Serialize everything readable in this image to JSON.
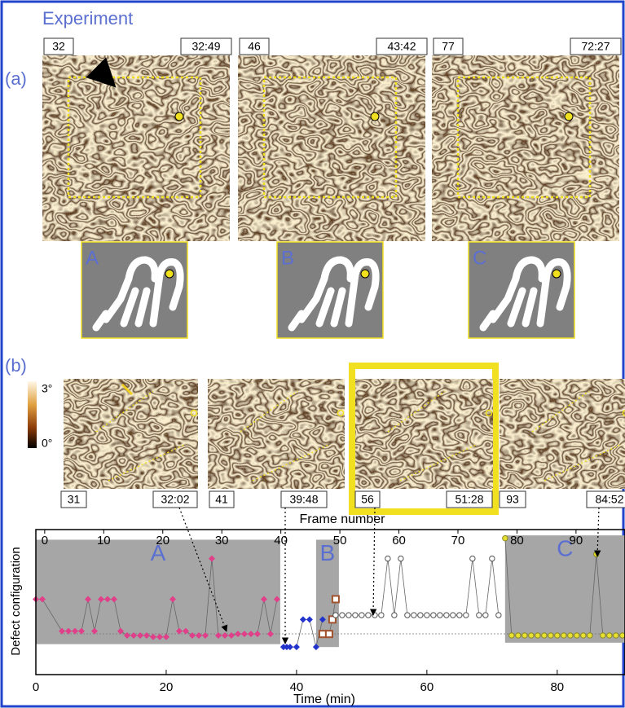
{
  "header": {
    "title": "Experiment"
  },
  "panel_a": {
    "label": "(a)",
    "frames": [
      {
        "number": "32",
        "time": "32:49",
        "schematic": "A"
      },
      {
        "number": "46",
        "time": "43:42",
        "schematic": "B"
      },
      {
        "number": "77",
        "time": "72:27",
        "schematic": "C"
      }
    ]
  },
  "panel_b": {
    "label": "(b)",
    "colorbar": {
      "max": "3°",
      "min": "0°"
    },
    "frames": [
      {
        "number": "31",
        "time": "32:02"
      },
      {
        "number": "41",
        "time": "39:48"
      },
      {
        "number": "56",
        "time": "51:28"
      },
      {
        "number": "93",
        "time": "84:52"
      }
    ]
  },
  "chart": {
    "x_label": "Time (min)",
    "x2_label": "Frame number",
    "y_label": "Defect configuration",
    "xlim": [
      0,
      90.4
    ],
    "xticks": [
      0,
      20,
      40,
      60,
      80
    ],
    "x2lim": [
      -1.5,
      98.3
    ],
    "x2ticks": [
      0,
      10,
      20,
      30,
      40,
      50,
      60,
      70,
      80,
      90
    ],
    "ylim": [
      0,
      10
    ],
    "regions": [
      {
        "label": "A",
        "x": [
          0,
          37.5
        ],
        "y": [
          2.1,
          9.3
        ]
      },
      {
        "label": "B",
        "x": [
          43,
          46.5
        ],
        "y": [
          1.9,
          9.3
        ]
      },
      {
        "label": "C",
        "x": [
          72,
          90.4
        ],
        "y": [
          2.2,
          9.6
        ]
      }
    ],
    "series": [
      {
        "color": "#e0408a",
        "marker": "diamond",
        "x": [
          0,
          1,
          4,
          5,
          6,
          7,
          8,
          9,
          10,
          11,
          12,
          13,
          14,
          15,
          16,
          17,
          18,
          19,
          20,
          21,
          22,
          23,
          24,
          25,
          26,
          27,
          28,
          29,
          30,
          31,
          32,
          33,
          34,
          35,
          36,
          37
        ],
        "y": [
          5.2,
          5.2,
          3.0,
          3.0,
          3.0,
          3.0,
          5.2,
          3.0,
          5.2,
          5.2,
          5.2,
          3.0,
          2.7,
          2.7,
          2.7,
          2.7,
          2.6,
          2.6,
          2.6,
          5.2,
          3.0,
          3.0,
          2.7,
          2.7,
          2.7,
          8.0,
          2.7,
          2.7,
          2.7,
          2.8,
          2.8,
          2.8,
          2.8,
          5.2,
          2.8,
          5.2
        ]
      },
      {
        "color": "#2233cc",
        "marker": "diamond",
        "x": [
          38,
          38.5,
          39,
          40,
          41,
          42,
          43,
          44
        ],
        "y": [
          1.9,
          1.9,
          1.9,
          1.9,
          3.8,
          3.8,
          1.9,
          3.8
        ]
      },
      {
        "color": "#a0522d",
        "marker": "square",
        "x": [
          44,
          45,
          45.5,
          46
        ],
        "y": [
          2.8,
          2.8,
          3.8,
          5.2
        ]
      },
      {
        "color": "#555555",
        "marker": "circle",
        "x": [
          46,
          47,
          48,
          49,
          50,
          51,
          52,
          53,
          54,
          55,
          56,
          57,
          58,
          59,
          60,
          61,
          62,
          63,
          64,
          65,
          66,
          67,
          68,
          69,
          70,
          71
        ],
        "y": [
          4.1,
          4.1,
          4.1,
          4.1,
          4.1,
          4.1,
          4.1,
          4.1,
          8.0,
          4.1,
          8.0,
          4.1,
          4.1,
          4.1,
          4.1,
          4.1,
          4.1,
          4.1,
          4.1,
          4.1,
          4.1,
          8.0,
          4.1,
          4.1,
          8.0,
          4.1
        ]
      },
      {
        "color": "#e8e030",
        "marker": "circle",
        "x": [
          72,
          73,
          74,
          75,
          76,
          77,
          78,
          79,
          80,
          81,
          82,
          83,
          84,
          85,
          86,
          87,
          88,
          89,
          90
        ],
        "y": [
          9.4,
          2.7,
          2.7,
          2.7,
          2.7,
          2.7,
          2.7,
          2.7,
          2.7,
          2.7,
          2.7,
          2.7,
          2.7,
          2.7,
          8.3,
          2.7,
          2.7,
          2.7,
          2.7
        ]
      }
    ]
  }
}
